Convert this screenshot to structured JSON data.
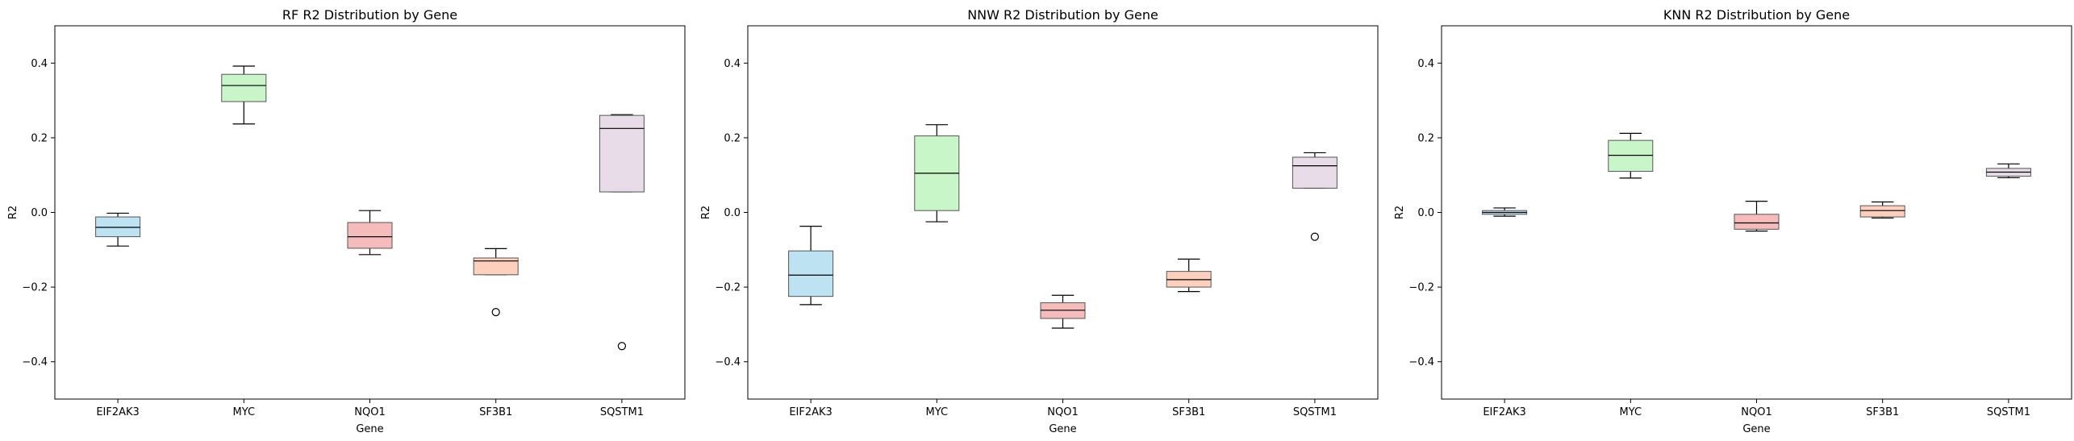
{
  "chart_data": [
    {
      "type": "box",
      "title": "RF R2 Distribution by Gene",
      "xlabel": "Gene",
      "ylabel": "R2",
      "ylim": [
        -0.5,
        0.5
      ],
      "yticks": [
        -0.4,
        -0.2,
        0.0,
        0.2,
        0.4
      ],
      "ytick_labels": [
        "−0.4",
        "−0.2",
        "0.0",
        "0.2",
        "0.4"
      ],
      "categories": [
        "EIF2AK3",
        "MYC",
        "NQO1",
        "SF3B1",
        "SQSTM1"
      ],
      "boxes": [
        {
          "whisker_low": -0.09,
          "q1": -0.065,
          "median": -0.04,
          "q3": -0.012,
          "whisker_high": -0.002,
          "outliers": []
        },
        {
          "whisker_low": 0.237,
          "q1": 0.297,
          "median": 0.34,
          "q3": 0.37,
          "whisker_high": 0.392,
          "outliers": []
        },
        {
          "whisker_low": -0.113,
          "q1": -0.096,
          "median": -0.065,
          "q3": -0.027,
          "whisker_high": 0.005,
          "outliers": []
        },
        {
          "whisker_low": -0.167,
          "q1": -0.167,
          "median": -0.13,
          "q3": -0.122,
          "whisker_high": -0.097,
          "outliers": [
            -0.267
          ]
        },
        {
          "whisker_low": 0.055,
          "q1": 0.055,
          "median": 0.225,
          "q3": 0.26,
          "whisker_high": 0.262,
          "outliers": [
            -0.358
          ]
        }
      ]
    },
    {
      "type": "box",
      "title": "NNW R2 Distribution by Gene",
      "xlabel": "Gene",
      "ylabel": "R2",
      "ylim": [
        -0.5,
        0.5
      ],
      "yticks": [
        -0.4,
        -0.2,
        0.0,
        0.2,
        0.4
      ],
      "ytick_labels": [
        "−0.4",
        "−0.2",
        "0.0",
        "0.2",
        "0.4"
      ],
      "categories": [
        "EIF2AK3",
        "MYC",
        "NQO1",
        "SF3B1",
        "SQSTM1"
      ],
      "boxes": [
        {
          "whisker_low": -0.247,
          "q1": -0.225,
          "median": -0.168,
          "q3": -0.103,
          "whisker_high": -0.037,
          "outliers": []
        },
        {
          "whisker_low": -0.025,
          "q1": 0.005,
          "median": 0.105,
          "q3": 0.205,
          "whisker_high": 0.235,
          "outliers": []
        },
        {
          "whisker_low": -0.31,
          "q1": -0.284,
          "median": -0.262,
          "q3": -0.242,
          "whisker_high": -0.222,
          "outliers": []
        },
        {
          "whisker_low": -0.212,
          "q1": -0.2,
          "median": -0.18,
          "q3": -0.158,
          "whisker_high": -0.125,
          "outliers": []
        },
        {
          "whisker_low": 0.065,
          "q1": 0.065,
          "median": 0.125,
          "q3": 0.148,
          "whisker_high": 0.16,
          "outliers": [
            -0.065
          ]
        }
      ]
    },
    {
      "type": "box",
      "title": "KNN R2 Distribution by Gene",
      "xlabel": "Gene",
      "ylabel": "R2",
      "ylim": [
        -0.5,
        0.5
      ],
      "yticks": [
        -0.4,
        -0.2,
        0.0,
        0.2,
        0.4
      ],
      "ytick_labels": [
        "−0.4",
        "−0.2",
        "0.0",
        "0.2",
        "0.4"
      ],
      "categories": [
        "EIF2AK3",
        "MYC",
        "NQO1",
        "SF3B1",
        "SQSTM1"
      ],
      "boxes": [
        {
          "whisker_low": -0.01,
          "q1": -0.005,
          "median": 0.0,
          "q3": 0.005,
          "whisker_high": 0.012,
          "outliers": []
        },
        {
          "whisker_low": 0.092,
          "q1": 0.11,
          "median": 0.153,
          "q3": 0.193,
          "whisker_high": 0.212,
          "outliers": []
        },
        {
          "whisker_low": -0.05,
          "q1": -0.045,
          "median": -0.028,
          "q3": -0.005,
          "whisker_high": 0.03,
          "outliers": []
        },
        {
          "whisker_low": -0.015,
          "q1": -0.012,
          "median": 0.005,
          "q3": 0.018,
          "whisker_high": 0.028,
          "outliers": []
        },
        {
          "whisker_low": 0.093,
          "q1": 0.097,
          "median": 0.108,
          "q3": 0.118,
          "whisker_high": 0.13,
          "outliers": []
        }
      ]
    }
  ],
  "colors": {
    "box_fills": [
      "#bde3f2",
      "#c8f6c8",
      "#f6bcbc",
      "#fdd0bd",
      "#e8dce8"
    ],
    "line": "#000000",
    "box_edge": "#555555"
  }
}
